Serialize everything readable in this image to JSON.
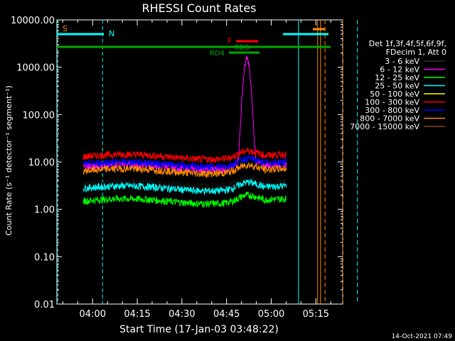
{
  "chart_data": {
    "type": "line",
    "title": "RHESSI Count Rates",
    "xlabel": "Start Time (17-Jan-03 03:48:22)",
    "ylabel": "Count Rate (s⁻¹ detector⁻¹ segment⁻¹)",
    "y_scale": "log",
    "ylim": [
      0.01,
      10000
    ],
    "xlim": [
      "03:48",
      "05:24"
    ],
    "y_ticks": [
      "0.01",
      "0.10",
      "1.00",
      "10.00",
      "100.00",
      "1000.00",
      "10000.00"
    ],
    "x_ticks": [
      "04:00",
      "04:15",
      "04:30",
      "04:45",
      "05:00",
      "05:15"
    ],
    "legend_title": [
      "Det 1f,3f,4f,5f,6f,9f,",
      "FDecim 1, Att 0"
    ],
    "legend_position": "right",
    "timestamp": "14-Oct-2021 07:49",
    "series": [
      {
        "name": "3 - 6 keV",
        "color": "#000000",
        "base": 3.5
      },
      {
        "name": "6 - 12 keV",
        "color": "#ff00ff",
        "base": 8.0,
        "peak": 1500
      },
      {
        "name": "12 - 25 keV",
        "color": "#00ff00",
        "base": 1.5
      },
      {
        "name": "25 - 50 keV",
        "color": "#00ffff",
        "base": 2.8
      },
      {
        "name": "50 - 100 keV",
        "color": "#ffff00",
        "base": 0
      },
      {
        "name": "100 - 300 keV",
        "color": "#ff0000",
        "base": 13
      },
      {
        "name": "300 - 800 keV",
        "color": "#0000ff",
        "base": 9
      },
      {
        "name": "800 - 7000 keV",
        "color": "#ff8c00",
        "base": 6.5
      },
      {
        "name": "7000 - 15000 keV",
        "color": "#8b4513",
        "base": 0
      }
    ],
    "annotations": [
      {
        "label": "S",
        "color": "#ff8c00"
      },
      {
        "label": "N",
        "color": "#00ffff"
      },
      {
        "label": "F",
        "color": "#ff0000"
      },
      {
        "label": "RD0",
        "color": "#00aa00"
      },
      {
        "label": "RD4",
        "color": "#00aa00"
      }
    ]
  }
}
